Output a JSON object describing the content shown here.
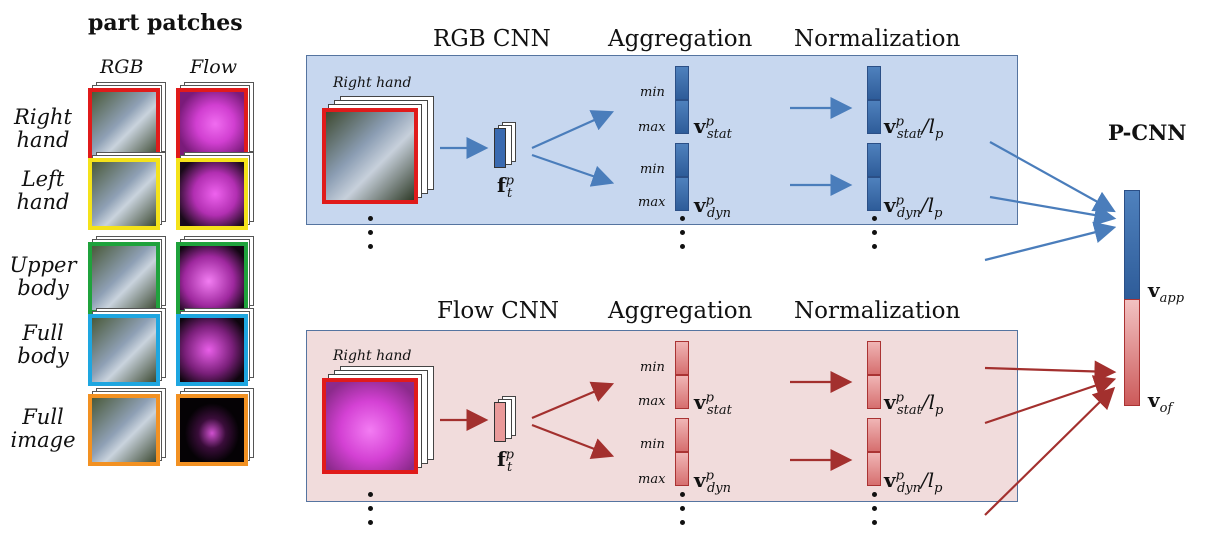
{
  "header": {
    "part_patches": "part patches",
    "rgb_col": "RGB",
    "flow_col": "Flow"
  },
  "rows": [
    {
      "line1": "Right",
      "line2": "hand",
      "color": "#e01b1b"
    },
    {
      "line1": "Left",
      "line2": "hand",
      "color": "#f4e21a"
    },
    {
      "line1": "Upper",
      "line2": "body",
      "color": "#1fa23c"
    },
    {
      "line1": "Full",
      "line2": "body",
      "color": "#1ea6e0"
    },
    {
      "line1": "Full",
      "line2": "image",
      "color": "#f29122"
    }
  ],
  "rgb_stream": {
    "title": "RGB CNN",
    "aggregation": "Aggregation",
    "normalization": "Normalization",
    "patch_label": "Right hand",
    "min": "min",
    "max": "max",
    "panel_color": "#c7d7ef",
    "arrow_color": "#4a7dbb"
  },
  "flow_stream": {
    "title": "Flow CNN",
    "aggregation": "Aggregation",
    "normalization": "Normalization",
    "patch_label": "Right hand",
    "min": "min",
    "max": "max",
    "panel_color": "#f1dcdc",
    "arrow_color": "#a3302e"
  },
  "vectors": {
    "f": "f",
    "f_sub": "t",
    "f_sup": "p",
    "stat": "v",
    "stat_sub": "stat",
    "stat_sup": "p",
    "dyn": "v",
    "dyn_sub": "dyn",
    "dyn_sup": "p",
    "norm_div": "/l",
    "norm_sub": "p"
  },
  "pcnn": {
    "title": "P-CNN",
    "v_app": "v",
    "v_app_sub": "app",
    "v_of": "v",
    "v_of_sub": "of"
  }
}
